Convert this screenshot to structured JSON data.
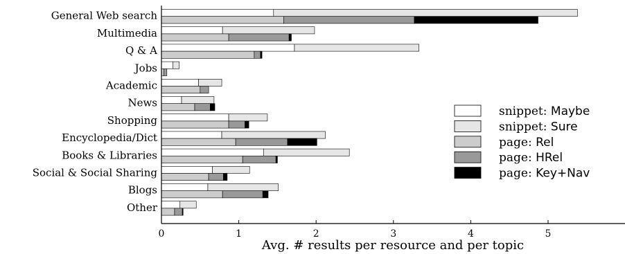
{
  "chart_data": {
    "type": "bar",
    "orientation": "horizontal",
    "stacked": true,
    "xlabel": "Avg. # results per resource and per topic",
    "xlim": [
      0,
      6
    ],
    "xticks": [
      "0",
      "1",
      "2",
      "3",
      "4",
      "5"
    ],
    "categories": [
      "General Web search",
      "Multimedia",
      "Q & A",
      "Jobs",
      "Academic",
      "News",
      "Shopping",
      "Encyclopedia/Dict",
      "Books & Libraries",
      "Social & Social Sharing",
      "Blogs",
      "Other"
    ],
    "snippet_series": [
      {
        "name": "snippet: Maybe",
        "prefix": "snippet: ",
        "suffix": "Maybe",
        "color": "#ffffff",
        "values": [
          1.45,
          0.79,
          1.72,
          0.15,
          0.48,
          0.26,
          0.87,
          0.78,
          1.32,
          0.66,
          0.6,
          0.24
        ]
      },
      {
        "name": "snippet: Sure",
        "prefix": "snippet: ",
        "suffix": "Sure",
        "color": "#e6e6e6",
        "values": [
          3.93,
          1.19,
          1.61,
          0.08,
          0.3,
          0.42,
          0.5,
          1.34,
          1.11,
          0.48,
          0.91,
          0.21
        ]
      }
    ],
    "page_series": [
      {
        "name": "page: Rel",
        "prefix": "page: ",
        "suffix": "Rel",
        "color": "#cccccc",
        "values": [
          1.58,
          0.87,
          1.2,
          0.03,
          0.5,
          0.43,
          0.87,
          0.96,
          1.05,
          0.61,
          0.79,
          0.17
        ]
      },
      {
        "name": "page: HRel",
        "prefix": "page: ",
        "suffix": "HRel",
        "color": "#999999",
        "values": [
          1.69,
          0.78,
          0.08,
          0.04,
          0.11,
          0.2,
          0.21,
          0.67,
          0.43,
          0.19,
          0.52,
          0.1
        ]
      },
      {
        "name": "page: Key+Nav",
        "prefix": "page: ",
        "suffix": "Key+Nav",
        "color": "#000000",
        "values": [
          1.6,
          0.03,
          0.02,
          0.0,
          0.0,
          0.06,
          0.05,
          0.38,
          0.02,
          0.05,
          0.07,
          0.01
        ]
      }
    ],
    "legend_position": "right"
  }
}
